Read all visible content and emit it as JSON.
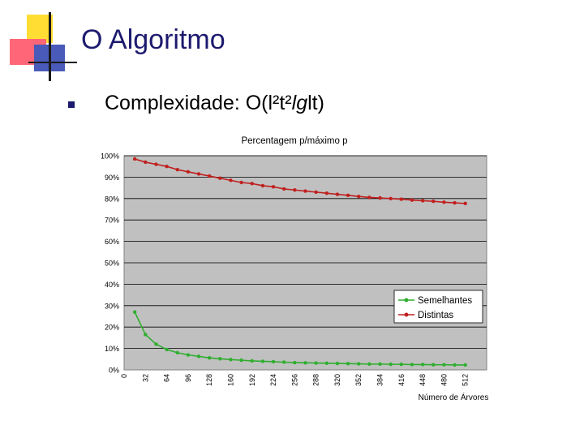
{
  "slide": {
    "title": "O Algoritmo",
    "bullet": {
      "prefix": "Complexidade: O(l²t²",
      "italic": "lg",
      "suffix": "lt)"
    }
  },
  "colors": {
    "title": "#1c1a6e",
    "deco_yellow": "#ffdd33",
    "deco_red": "#ff6677",
    "deco_blue": "#4a5ab8",
    "plot_bg": "#c0c0c0",
    "semelhantes": "#2fae2f",
    "distintas": "#c0201f"
  },
  "chart_data": {
    "type": "line",
    "title": "Percentagem p/máximo p",
    "xlabel": "Número de Árvores",
    "ylabel": "",
    "x_ticks": [
      "0",
      "32",
      "64",
      "96",
      "128",
      "160",
      "192",
      "224",
      "256",
      "288",
      "320",
      "352",
      "384",
      "416",
      "448",
      "480",
      "512"
    ],
    "y_ticks": [
      "0%",
      "10%",
      "20%",
      "30%",
      "40%",
      "50%",
      "60%",
      "70%",
      "80%",
      "90%",
      "100%"
    ],
    "xlim": [
      0,
      544
    ],
    "ylim": [
      0,
      100
    ],
    "grid": true,
    "legend_position": "right",
    "x": [
      16,
      32,
      48,
      64,
      80,
      96,
      112,
      128,
      144,
      160,
      176,
      192,
      208,
      224,
      240,
      256,
      272,
      288,
      304,
      320,
      336,
      352,
      368,
      384,
      400,
      416,
      432,
      448,
      464,
      480,
      496,
      512
    ],
    "series": [
      {
        "name": "Semelhantes",
        "color_key": "semelhantes",
        "values": [
          27,
          16.5,
          12,
          9.5,
          8,
          7,
          6.3,
          5.6,
          5.2,
          4.8,
          4.5,
          4.2,
          4,
          3.8,
          3.6,
          3.4,
          3.3,
          3.2,
          3.1,
          3,
          2.9,
          2.8,
          2.7,
          2.7,
          2.6,
          2.6,
          2.5,
          2.5,
          2.4,
          2.4,
          2.3,
          2.3
        ]
      },
      {
        "name": "Distintas",
        "color_key": "distintas",
        "values": [
          98.5,
          97,
          96,
          95,
          93.5,
          92.5,
          91.5,
          90.5,
          89.5,
          88.5,
          87.5,
          87,
          86,
          85.5,
          84.5,
          84,
          83.5,
          83,
          82.5,
          82,
          81.5,
          81,
          80.5,
          80.3,
          80,
          79.7,
          79.3,
          79,
          78.7,
          78.3,
          78,
          77.7
        ]
      }
    ]
  }
}
